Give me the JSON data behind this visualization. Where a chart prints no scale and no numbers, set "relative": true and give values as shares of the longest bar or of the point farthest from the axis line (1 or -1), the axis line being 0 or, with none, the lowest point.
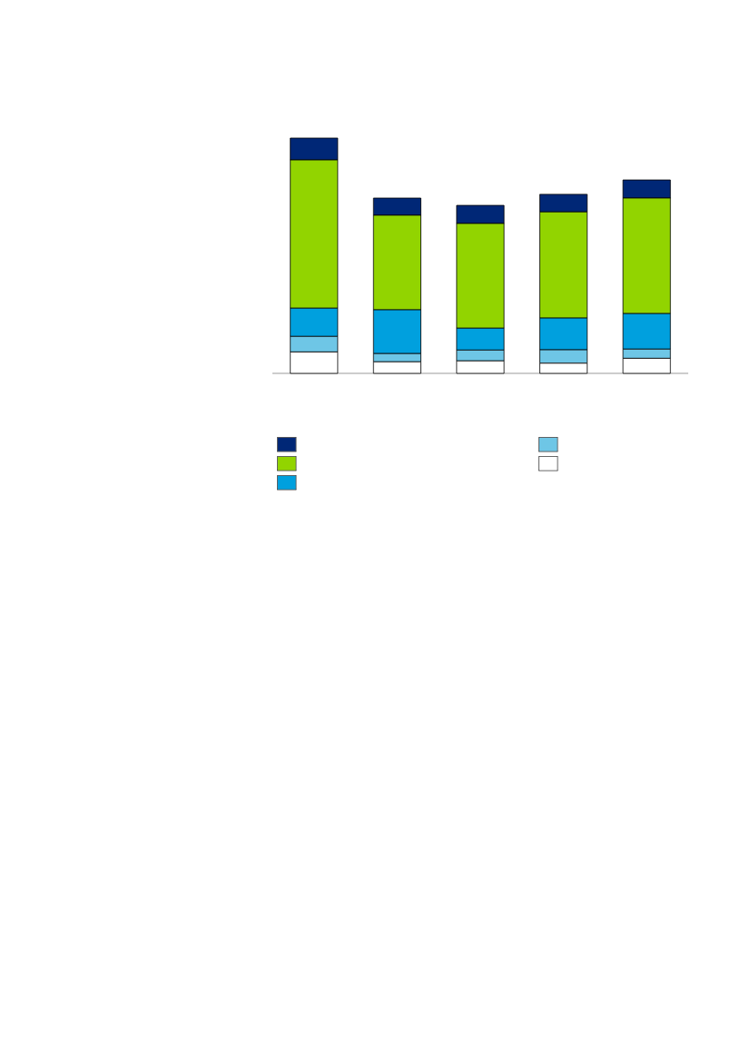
{
  "chart_data": {
    "type": "bar",
    "stacked": true,
    "relative": true,
    "categories": [
      null,
      null,
      null,
      null,
      null
    ],
    "series": [
      {
        "color": "#ffffff",
        "values": [
          0.091,
          0.049,
          0.053,
          0.043,
          0.064
        ]
      },
      {
        "color": "#6ec6e6",
        "values": [
          0.066,
          0.035,
          0.046,
          0.057,
          0.039
        ]
      },
      {
        "color": "#00a0de",
        "values": [
          0.12,
          0.186,
          0.093,
          0.135,
          0.151
        ]
      },
      {
        "color": "#92d400",
        "values": [
          0.63,
          0.402,
          0.445,
          0.451,
          0.491
        ]
      },
      {
        "color": "#002776",
        "values": [
          0.093,
          0.073,
          0.077,
          0.075,
          0.077
        ]
      }
    ]
  }
}
